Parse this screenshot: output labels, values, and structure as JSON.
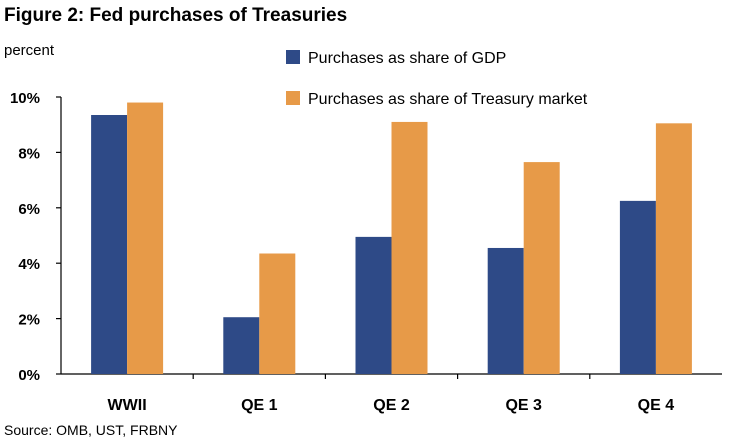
{
  "chart_data": {
    "type": "bar",
    "title": "Figure 2: Fed purchases of Treasuries",
    "ylabel": "percent",
    "source": "Source: OMB, UST, FRBNY",
    "categories": [
      "WWII",
      "QE 1",
      "QE 2",
      "QE 3",
      "QE 4"
    ],
    "ylim": [
      0,
      10
    ],
    "yticks": [
      0,
      2,
      4,
      6,
      8,
      10
    ],
    "yticks_labels": [
      "0%",
      "2%",
      "4%",
      "6%",
      "8%",
      "10%"
    ],
    "grid": false,
    "legend_position": "top-right",
    "series": [
      {
        "name": "Purchases as share of GDP",
        "color": "#2e4a87",
        "values": [
          9.35,
          2.05,
          4.95,
          4.55,
          6.25
        ]
      },
      {
        "name": "Purchases as share of Treasury market",
        "color": "#e79a48",
        "values": [
          9.8,
          4.35,
          9.1,
          7.65,
          9.05
        ]
      }
    ]
  }
}
